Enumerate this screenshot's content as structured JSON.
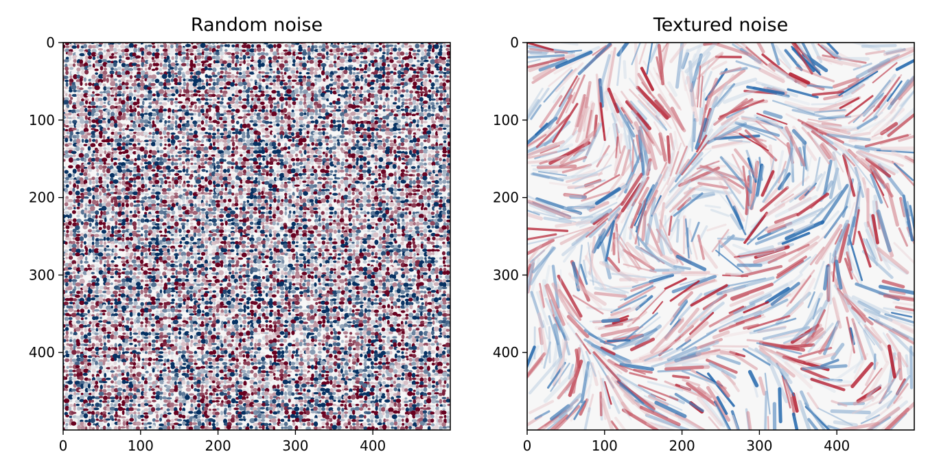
{
  "chart_data": [
    {
      "type": "heatmap",
      "title": "Random noise",
      "xlabel": "",
      "ylabel": "",
      "xlim": [
        0,
        500
      ],
      "ylim": [
        500,
        0
      ],
      "x_ticks": [
        0,
        100,
        200,
        300,
        400
      ],
      "y_ticks": [
        0,
        100,
        200,
        300,
        400
      ],
      "colormap": "RdBu_r",
      "texture": "random",
      "grid": false,
      "colors": {
        "low": "#053061",
        "mid": "#f7f7f7",
        "high": "#67001f"
      }
    },
    {
      "type": "heatmap",
      "title": "Textured noise",
      "xlabel": "",
      "ylabel": "",
      "xlim": [
        0,
        500
      ],
      "ylim": [
        500,
        0
      ],
      "x_ticks": [
        0,
        100,
        200,
        300,
        400
      ],
      "y_ticks": [
        0,
        100,
        200,
        300,
        400
      ],
      "colormap": "RdBu_r",
      "texture": "smooth-streaks",
      "grid": false,
      "colors": {
        "low": "#2166ac",
        "mid": "#f7f7f7",
        "high": "#b2182b"
      }
    }
  ]
}
